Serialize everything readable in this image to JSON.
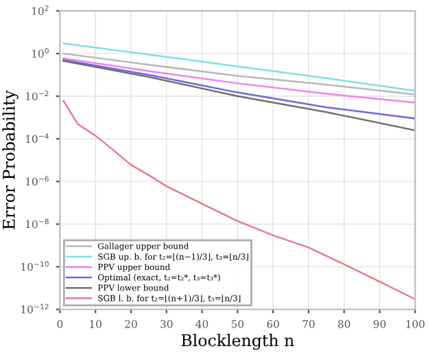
{
  "chart_data": {
    "type": "line",
    "xlabel": "Blocklength n",
    "ylabel": "Error Probability",
    "log": "y",
    "xlim": [
      0,
      100
    ],
    "xticks": [
      0,
      10,
      20,
      30,
      40,
      50,
      60,
      70,
      80,
      90,
      100
    ],
    "ylim": [
      1e-12,
      100
    ],
    "yticks": [
      {
        "value": 1e-12,
        "label": "10$^{−12}$"
      },
      {
        "value": 1e-10,
        "label": "10$^{−10}$"
      },
      {
        "value": 1e-08,
        "label": "10$^{−8}$"
      },
      {
        "value": 1e-06,
        "label": "10$^{−6}$"
      },
      {
        "value": 0.0001,
        "label": "10$^{−4}$"
      },
      {
        "value": 0.01,
        "label": "10$^{−2}$"
      },
      {
        "value": 1,
        "label": "10$^{0}$"
      },
      {
        "value": 100,
        "label": "10$^{2}$"
      }
    ],
    "grid": true,
    "legend": "bottom left",
    "line_style": "solid",
    "marker": "none",
    "series": [
      {
        "name": "Gallager upper bound",
        "color": "#b8b8b8",
        "x": [
          1,
          25,
          50,
          75,
          100
        ],
        "values": [
          1.0,
          0.3,
          0.09,
          0.035,
          0.012
        ]
      },
      {
        "name": "SGB up. b. for t₂=⌊(n−1)/3⌋, t₃=⌊n/3⌋",
        "color": "#7fe0e0",
        "x": [
          1,
          25,
          50,
          75,
          100
        ],
        "values": [
          3.0,
          0.9,
          0.25,
          0.07,
          0.018
        ]
      },
      {
        "name": "PPV upper bound",
        "color": "#ee82ee",
        "x": [
          1,
          25,
          50,
          75,
          100
        ],
        "values": [
          0.6,
          0.15,
          0.04,
          0.013,
          0.005
        ]
      },
      {
        "name": "Optimal (exact, t₂=t₂*, t₃=t₃*)",
        "color": "#6a6ae0",
        "x": [
          1,
          25,
          50,
          75,
          100
        ],
        "values": [
          0.5,
          0.1,
          0.015,
          0.003,
          0.0009
        ]
      },
      {
        "name": "PPV lower bound",
        "color": "#707070",
        "x": [
          1,
          25,
          50,
          75,
          100
        ],
        "values": [
          0.45,
          0.08,
          0.01,
          0.0018,
          0.00025
        ]
      },
      {
        "name": "SGB l. b. for t₂=⌊(n+1)/3⌋, t₃=⌊n/3⌋",
        "color": "#e87a8a",
        "x": [
          1,
          5,
          10,
          15,
          20,
          25,
          30,
          40,
          50,
          60,
          70,
          80,
          90,
          100
        ],
        "values": [
          0.006,
          0.0005,
          0.00014,
          3e-05,
          6e-06,
          2e-06,
          6e-07,
          9e-08,
          1.4e-08,
          3e-09,
          8e-10,
          1.3e-10,
          2e-11,
          3e-12
        ]
      }
    ]
  }
}
